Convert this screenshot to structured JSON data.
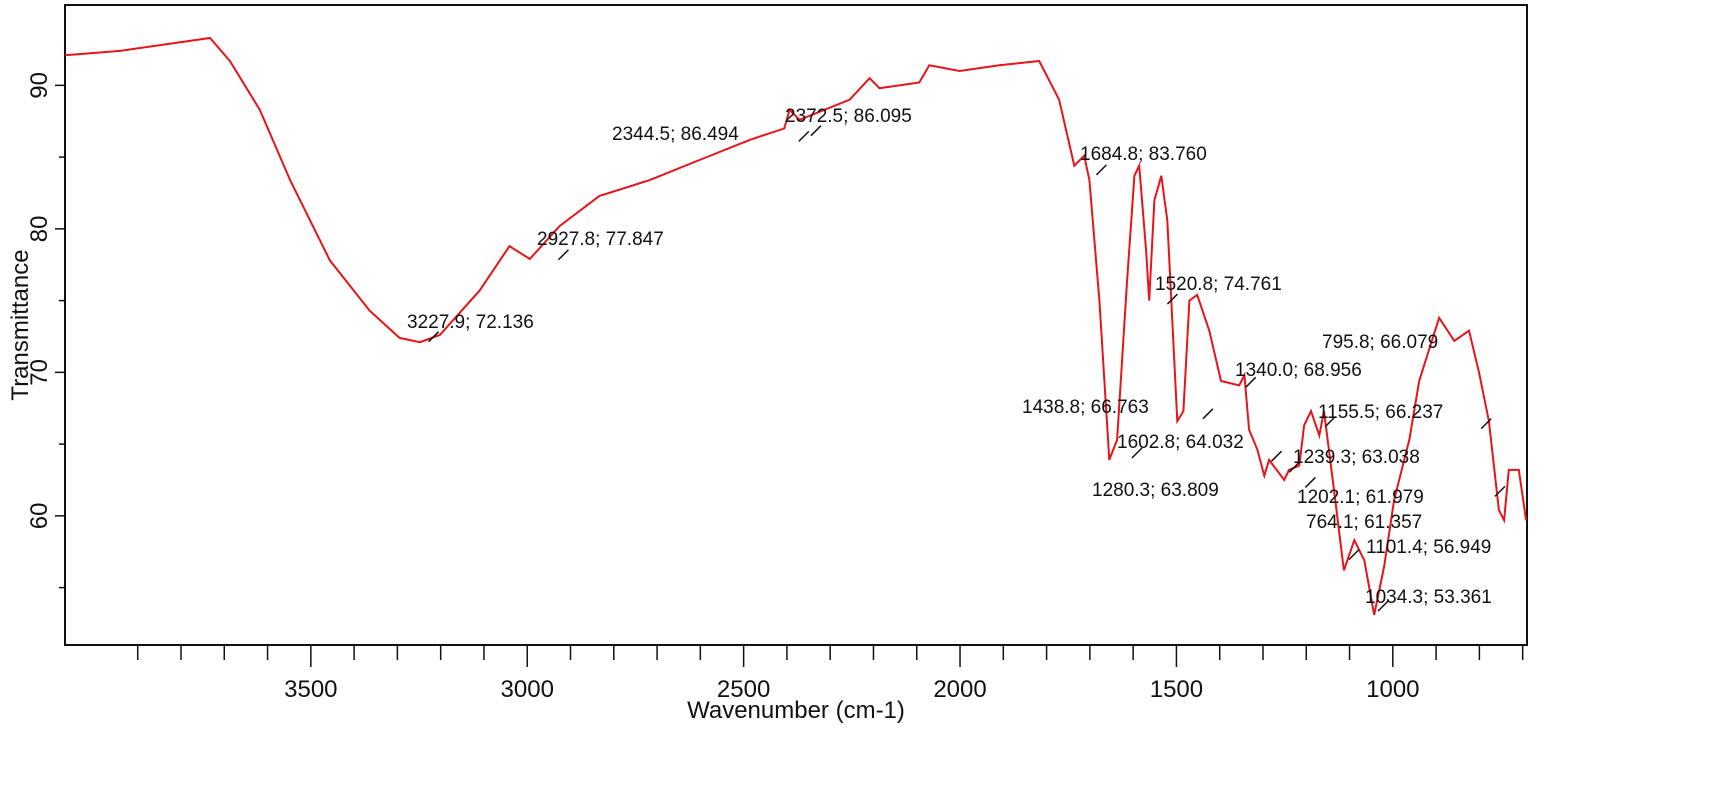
{
  "chart_data": {
    "type": "line",
    "title": "",
    "xlabel": "Wavenumber (cm-1)",
    "ylabel": "Transmittance",
    "xlim": [
      4068,
      690
    ],
    "ylim": [
      51,
      95.6
    ],
    "x_reversed": true,
    "grid": false,
    "line_color": "#e8141a",
    "xticks": [
      3500,
      3000,
      2500,
      2000,
      1500,
      1000
    ],
    "xtick_labels": [
      "3500",
      "3000",
      "2500",
      "2000",
      "1500",
      "1000"
    ],
    "yticks": [
      60,
      70,
      80,
      90
    ],
    "ytick_labels": [
      "60",
      "70",
      "80",
      "90"
    ],
    "series": [
      {
        "x": [
          4068,
          3941,
          3733,
          3687,
          3618,
          3548,
          3456,
          3364,
          3295,
          3248,
          3202,
          3110,
          3041,
          2994,
          2925,
          2833,
          2717,
          2602,
          2486,
          2406,
          2394,
          2371,
          2255,
          2209,
          2186,
          2094,
          2071,
          2001,
          1909,
          1817,
          1771,
          1736,
          1713,
          1701,
          1678,
          1655,
          1637,
          1614,
          1597,
          1586,
          1570,
          1563,
          1551,
          1535,
          1521,
          1498,
          1484,
          1470,
          1452,
          1424,
          1397,
          1355,
          1343,
          1332,
          1313,
          1297,
          1286,
          1251,
          1240,
          1216,
          1205,
          1189,
          1170,
          1159,
          1136,
          1113,
          1089,
          1066,
          1043,
          1020,
          997,
          962,
          939,
          893,
          858,
          824,
          801,
          778,
          755,
          743,
          732,
          709,
          692
        ],
        "y": [
          92.1,
          92.4,
          93.3,
          91.7,
          88.3,
          83.4,
          77.8,
          74.3,
          72.4,
          72.1,
          72.6,
          75.7,
          78.8,
          77.9,
          80.2,
          82.3,
          83.4,
          84.8,
          86.2,
          87.0,
          88.3,
          87.6,
          89.0,
          90.5,
          89.8,
          90.2,
          91.4,
          91.0,
          91.4,
          91.7,
          89.0,
          84.4,
          85.1,
          83.4,
          75.0,
          63.9,
          65.3,
          76.4,
          83.7,
          84.4,
          78.5,
          75.0,
          82.0,
          83.7,
          80.6,
          66.6,
          67.3,
          75.0,
          75.4,
          72.9,
          69.4,
          69.1,
          69.8,
          66.0,
          64.6,
          62.8,
          63.9,
          62.5,
          63.2,
          63.5,
          66.3,
          67.3,
          65.6,
          67.3,
          61.8,
          56.2,
          58.3,
          56.9,
          53.1,
          56.5,
          61.1,
          65.3,
          69.4,
          73.8,
          72.2,
          72.9,
          70.0,
          66.6,
          60.4,
          59.7,
          63.2,
          63.2,
          59.7
        ]
      }
    ],
    "annotations": [
      {
        "x": 2344.5,
        "y": 86.494,
        "label": "2344.5; 86.494"
      },
      {
        "x": 2372.5,
        "y": 86.095,
        "label": "2372.5; 86.095"
      },
      {
        "x": 1684.8,
        "y": 83.76,
        "label": "1684.8; 83.760"
      },
      {
        "x": 2927.8,
        "y": 77.847,
        "label": "2927.8; 77.847"
      },
      {
        "x": 3227.9,
        "y": 72.136,
        "label": "3227.9; 72.136"
      },
      {
        "x": 1520.8,
        "y": 74.761,
        "label": "1520.8; 74.761"
      },
      {
        "x": 795.8,
        "y": 66.079,
        "label": "795.8; 66.079"
      },
      {
        "x": 1340.0,
        "y": 68.956,
        "label": "1340.0; 68.956"
      },
      {
        "x": 1438.8,
        "y": 66.763,
        "label": "1438.8; 66.763"
      },
      {
        "x": 1155.5,
        "y": 66.237,
        "label": "1155.5; 66.237"
      },
      {
        "x": 1602.8,
        "y": 64.032,
        "label": "1602.8; 64.032"
      },
      {
        "x": 1239.3,
        "y": 63.038,
        "label": "1239.3; 63.038"
      },
      {
        "x": 1280.3,
        "y": 63.809,
        "label": "1280.3; 63.809"
      },
      {
        "x": 1202.1,
        "y": 61.979,
        "label": "1202.1; 61.979"
      },
      {
        "x": 764.1,
        "y": 61.357,
        "label": "764.1; 61.357"
      },
      {
        "x": 1101.4,
        "y": 56.949,
        "label": "1101.4; 56.949"
      },
      {
        "x": 1034.3,
        "y": 53.361,
        "label": "1034.3; 53.361"
      }
    ]
  }
}
